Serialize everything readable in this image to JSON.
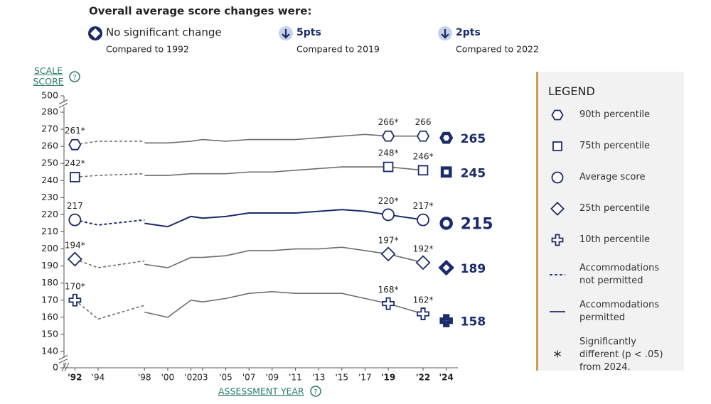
{
  "summary": {
    "title": "Overall average score changes were:",
    "items": [
      {
        "change": "No significant change",
        "compared": "Compared to 1992"
      },
      {
        "change": "5pts",
        "compared": "Compared to 2019"
      },
      {
        "change": "2pts",
        "compared": "Compared to 2022"
      }
    ]
  },
  "chart_data": {
    "type": "line",
    "y_label": "SCALE SCORE",
    "x_label": "ASSESSMENT YEAR",
    "xlim": [
      1991,
      2025
    ],
    "xticks": [
      {
        "value": 1992,
        "label": "'92"
      },
      {
        "value": 1994,
        "label": "'94"
      },
      {
        "value": 1998,
        "label": "'98"
      },
      {
        "value": 2000,
        "label": "'00"
      },
      {
        "value": 2002,
        "label": "'02"
      },
      {
        "value": 2003,
        "label": "03"
      },
      {
        "value": 2005,
        "label": "'05"
      },
      {
        "value": 2007,
        "label": "'07"
      },
      {
        "value": 2009,
        "label": "'09"
      },
      {
        "value": 2011,
        "label": "'11"
      },
      {
        "value": 2013,
        "label": "'13"
      },
      {
        "value": 2015,
        "label": "'15"
      },
      {
        "value": 2017,
        "label": "'17"
      },
      {
        "value": 2019,
        "label": "'19"
      },
      {
        "value": 2022,
        "label": "'22"
      },
      {
        "value": 2024,
        "label": "'24"
      }
    ],
    "ylim": [
      0,
      500
    ],
    "y_breaks": [
      [
        0,
        140
      ],
      [
        280,
        500
      ]
    ],
    "yticks": [
      0,
      140,
      150,
      160,
      170,
      180,
      190,
      200,
      210,
      220,
      230,
      240,
      250,
      260,
      270,
      280,
      500
    ],
    "x_not_permitted": [
      1992,
      1994,
      1998
    ],
    "x_permitted": [
      1998,
      2000,
      2002,
      2003,
      2005,
      2007,
      2009,
      2011,
      2013,
      2015,
      2017,
      2019,
      2022
    ],
    "x_latest": 2024,
    "marker_x": [
      1992,
      2019,
      2022
    ],
    "marker_color": "#1b2a6b",
    "series": [
      {
        "name": "90th percentile",
        "marker": "hexagon",
        "color": "#6d6d6d",
        "values_not_permitted": [
          261,
          263,
          263
        ],
        "values_permitted": [
          262,
          262,
          263,
          264,
          263,
          264,
          264,
          264,
          265,
          266,
          267,
          266,
          266
        ],
        "latest": 265,
        "marker_labels": [
          "261*",
          "266*",
          "266"
        ]
      },
      {
        "name": "75th percentile",
        "marker": "square",
        "color": "#6d6d6d",
        "values_not_permitted": [
          242,
          243,
          244
        ],
        "values_permitted": [
          243,
          243,
          244,
          244,
          244,
          245,
          245,
          246,
          247,
          248,
          248,
          248,
          246
        ],
        "latest": 245,
        "marker_labels": [
          "242*",
          "248*",
          "246*"
        ]
      },
      {
        "name": "Average score",
        "marker": "circle",
        "color": "#1b2a6b",
        "highlight": true,
        "values_not_permitted": [
          217,
          214,
          217
        ],
        "values_permitted": [
          215,
          213,
          219,
          218,
          219,
          221,
          221,
          221,
          222,
          223,
          222,
          220,
          217
        ],
        "latest": 215,
        "marker_labels": [
          "217",
          "220*",
          "217*"
        ]
      },
      {
        "name": "25th percentile",
        "marker": "diamond",
        "color": "#6d6d6d",
        "values_not_permitted": [
          194,
          189,
          193
        ],
        "values_permitted": [
          191,
          189,
          195,
          195,
          196,
          199,
          199,
          200,
          200,
          201,
          199,
          197,
          192
        ],
        "latest": 189,
        "marker_labels": [
          "194*",
          "197*",
          "192*"
        ]
      },
      {
        "name": "10th percentile",
        "marker": "plus",
        "color": "#6d6d6d",
        "values_not_permitted": [
          170,
          159,
          167
        ],
        "values_permitted": [
          163,
          160,
          170,
          169,
          171,
          174,
          175,
          174,
          174,
          174,
          171,
          168,
          162
        ],
        "latest": 158,
        "marker_labels": [
          "170*",
          "168*",
          "162*"
        ]
      }
    ],
    "legend_title": "LEGEND",
    "line_styles": [
      "Accommodations not permitted",
      "Accommodations permitted"
    ],
    "note_symbol": "*",
    "note": "Significantly different (p < .05) from 2024."
  }
}
